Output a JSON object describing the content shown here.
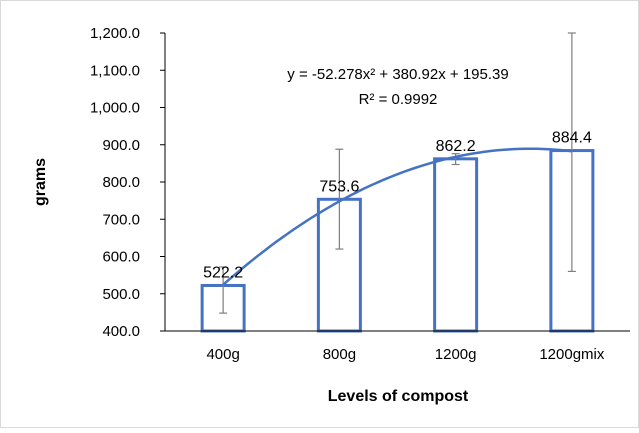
{
  "chart_data": {
    "type": "bar",
    "title": "",
    "xlabel": "Levels of compost",
    "ylabel": "grams",
    "categories": [
      "400g",
      "800g",
      "1200g",
      "1200gmix"
    ],
    "values": [
      522.2,
      753.6,
      862.2,
      884.4
    ],
    "value_labels": [
      "522.2",
      "753.6",
      "862.2",
      "884.4"
    ],
    "error_bars": [
      {
        "low": 448,
        "high": 572
      },
      {
        "low": 620,
        "high": 888
      },
      {
        "low": 847,
        "high": 876
      },
      {
        "low": 560,
        "high": 1200
      }
    ],
    "ylim": [
      400,
      1200
    ],
    "yticks": [
      400,
      500,
      600,
      700,
      800,
      900,
      1000,
      1100,
      1200
    ],
    "ytick_labels": [
      "400.0",
      "500.0",
      "600.0",
      "700.0",
      "800.0",
      "900.0",
      "1,000.0",
      "1,100.0",
      "1,200.0"
    ],
    "grid": false,
    "legend": "none",
    "trendline": {
      "type": "polynomial",
      "coefficients": {
        "a": -52.278,
        "b": 380.92,
        "c": 195.39
      },
      "equation": "y = -52.278x² + 380.92x + 195.39",
      "r_squared": "R² = 0.9992"
    },
    "colors": {
      "bar_border": "#4472C4",
      "bar_fill": "#ffffff",
      "trendline": "#4472C4",
      "error_bar": "#7f7f7f",
      "axis": "#000000"
    }
  }
}
